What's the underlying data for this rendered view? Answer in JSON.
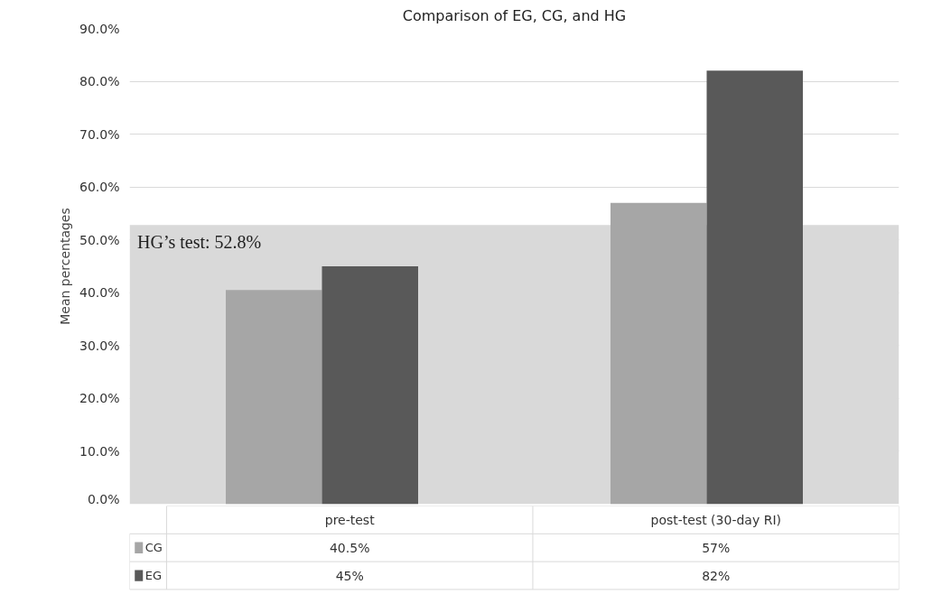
{
  "chart_data": {
    "type": "bar",
    "title": "Comparison of EG, CG, and HG",
    "ylabel": "Mean percentages",
    "categories": [
      "pre-test",
      "post-test (30-day RI)"
    ],
    "series": [
      {
        "name": "CG",
        "color": "#a6a6a6",
        "values": [
          40.5,
          57
        ],
        "value_labels": [
          "40.5%",
          "57%"
        ]
      },
      {
        "name": "EG",
        "color": "#595959",
        "values": [
          45,
          82
        ],
        "value_labels": [
          "45%",
          "82%"
        ]
      }
    ],
    "ylim": [
      0,
      90
    ],
    "yticks": [
      {
        "value": 0,
        "label": "0.0%"
      },
      {
        "value": 10,
        "label": "10.0%"
      },
      {
        "value": 20,
        "label": "20.0%"
      },
      {
        "value": 30,
        "label": "30.0%"
      },
      {
        "value": 40,
        "label": "40.0%"
      },
      {
        "value": 50,
        "label": "50.0%"
      },
      {
        "value": 60,
        "label": "60.0%"
      },
      {
        "value": 70,
        "label": "70.0%"
      },
      {
        "value": 80,
        "label": "80.0%"
      },
      {
        "value": 90,
        "label": "90.0%"
      }
    ],
    "bands": [
      {
        "axis": "y",
        "from": 0,
        "to": 52.8,
        "label": "HG’s test: 52.8%",
        "color": "#d9d9d9"
      }
    ],
    "grid": "y",
    "legend": "bottom",
    "data_labels": true
  }
}
